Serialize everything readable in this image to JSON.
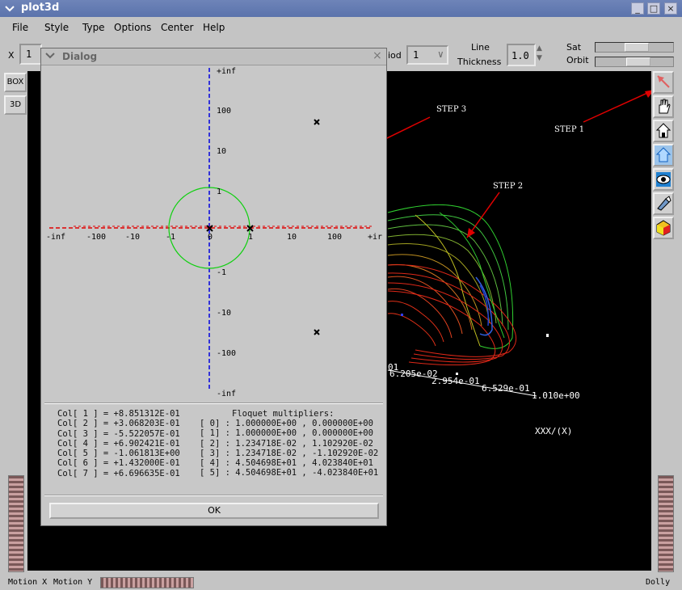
{
  "window": {
    "title": "plot3d",
    "minimize": "_",
    "maximize": "□",
    "close": "×"
  },
  "menu": [
    "File",
    "Style",
    "Type",
    "Options",
    "Center",
    "Help"
  ],
  "toolbar": {
    "x_label": "X",
    "x_value": "1",
    "period_label": "iod",
    "period_value": "1",
    "line_label_1": "Line",
    "line_label_2": "Thickness",
    "thickness_value": "1.0",
    "sat_label": "Sat",
    "orbit_label": "Orbit",
    "sat_level": 0.55,
    "orbit_level": 0.58
  },
  "sidebar_left": {
    "box": "BOX",
    "three_d": "3D"
  },
  "plot": {
    "step1": "STEP 1",
    "step2": "STEP 2",
    "step3": "STEP 3",
    "axis_vals": [
      "6.205e-02",
      "2.954e-01",
      "6.529e-01",
      "1.010e+00"
    ],
    "axis_title": "XXX/(X)",
    "stray_label": "01"
  },
  "dialog": {
    "title": "Dialog",
    "close": "×",
    "plot": {
      "y_top": "+inf",
      "y_labels": [
        "100",
        "10",
        "1",
        "-1",
        "-10",
        "-100"
      ],
      "y_bottom": "-inf",
      "x_left": "-inf",
      "x_labels": [
        "-100",
        "-10",
        "-1",
        "0",
        "1",
        "10",
        "100"
      ],
      "x_right": "+ir"
    },
    "columns": [
      "Col[ 1 ] = +8.851312E-01",
      "Col[ 2 ] = +3.068203E-01",
      "Col[ 3 ] = -5.522057E-01",
      "Col[ 4 ] = +6.902421E-01",
      "Col[ 5 ] = -1.061813E+00",
      "Col[ 6 ] = +1.432000E-01",
      "Col[ 7 ] = +6.696635E-01"
    ],
    "floquet_title": "Floquet multipliers:",
    "floquet": [
      "[ 0] : 1.000000E+00 , 0.000000E+00",
      "[ 1] : 1.000000E+00 , 0.000000E+00",
      "[ 2] : 1.234718E-02 , 1.102920E-02",
      "[ 3] : 1.234718E-02 , -1.102920E-02",
      "[ 4] : 4.504698E+01 , 4.023840E+01",
      "[ 5] : 4.504698E+01 , -4.023840E+01"
    ],
    "ok": "OK"
  },
  "status": {
    "motion_x": "Motion X",
    "motion_y": "Motion Y",
    "dolly": "Dolly"
  }
}
